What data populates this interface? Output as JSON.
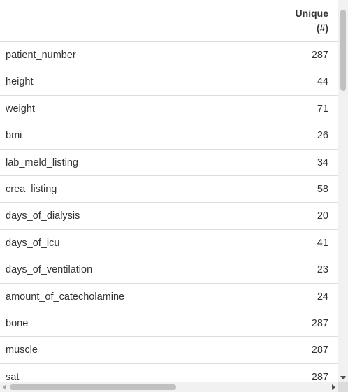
{
  "table": {
    "column_header": {
      "line1": "Unique",
      "line2": "(#)"
    },
    "rows": [
      {
        "name": "patient_number",
        "unique": "287"
      },
      {
        "name": "height",
        "unique": "44"
      },
      {
        "name": "weight",
        "unique": "71"
      },
      {
        "name": "bmi",
        "unique": "26"
      },
      {
        "name": "lab_meld_listing",
        "unique": "34"
      },
      {
        "name": "crea_listing",
        "unique": "58"
      },
      {
        "name": "days_of_dialysis",
        "unique": "20"
      },
      {
        "name": "days_of_icu",
        "unique": "41"
      },
      {
        "name": "days_of_ventilation",
        "unique": "23"
      },
      {
        "name": "amount_of_catecholamine",
        "unique": "24"
      },
      {
        "name": "bone",
        "unique": "287"
      },
      {
        "name": "muscle",
        "unique": "287"
      },
      {
        "name": "sat",
        "unique": "287"
      }
    ]
  }
}
